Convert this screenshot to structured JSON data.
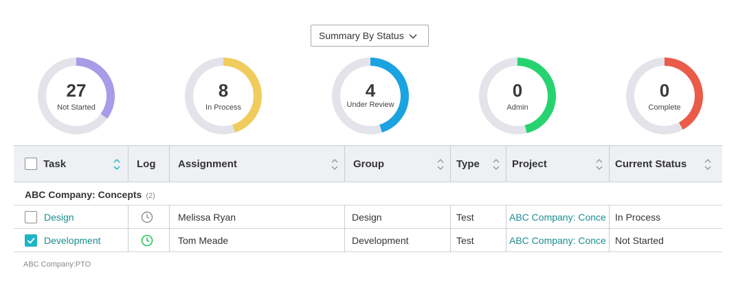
{
  "summary_select": {
    "label": "Summary By Status"
  },
  "donuts": [
    {
      "count": "27",
      "label": "Not Started",
      "fraction": 0.35,
      "color": "#a89be8"
    },
    {
      "count": "8",
      "label": "In Process",
      "fraction": 0.45,
      "color": "#f0cc5c"
    },
    {
      "count": "4",
      "label": "Under Review",
      "fraction": 0.45,
      "color": "#1aa3e0"
    },
    {
      "count": "0",
      "label": "Admin",
      "fraction": 0.46,
      "color": "#27d36f"
    },
    {
      "count": "0",
      "label": "Complete",
      "fraction": 0.42,
      "color": "#ea5b4a"
    }
  ],
  "table": {
    "headers": {
      "task": "Task",
      "log": "Log",
      "assignment": "Assignment",
      "group": "Group",
      "type": "Type",
      "project": "Project",
      "current_status": "Current Status"
    },
    "group_header": {
      "title": "ABC Company: Concepts",
      "count": "(2)"
    },
    "rows": [
      {
        "checked": false,
        "task": "Design",
        "log_color": "#8c8c8c",
        "assignment": "Melissa Ryan",
        "group": "Design",
        "type": "Test",
        "project": "ABC Company: Conce",
        "current_status": "In Process"
      },
      {
        "checked": true,
        "task": "Development",
        "log_color": "#27c25a",
        "assignment": "Tom Meade",
        "group": "Development",
        "type": "Test",
        "project": "ABC Company: Conce",
        "current_status": "Not Started"
      }
    ]
  },
  "footer_note": "ABC Company:PTO",
  "colors": {
    "accent": "#1fb5c6",
    "link": "#1a8d93",
    "track": "#e3e3ea"
  }
}
